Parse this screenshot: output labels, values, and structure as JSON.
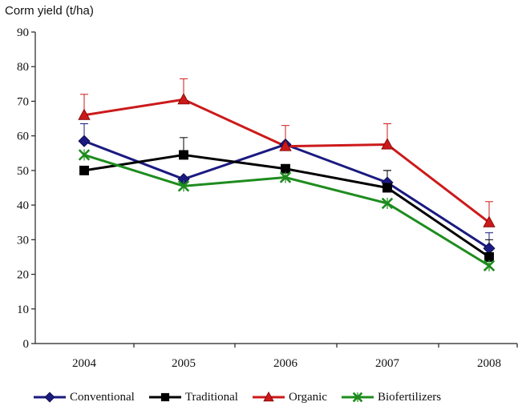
{
  "chart_data": {
    "type": "line",
    "title": "",
    "xlabel": "",
    "ylabel": "Corm yield (t/ha)",
    "categories": [
      "2004",
      "2005",
      "2006",
      "2007",
      "2008"
    ],
    "ylim": [
      0,
      90
    ],
    "yticks": [
      0,
      10,
      20,
      30,
      40,
      50,
      60,
      70,
      80,
      90
    ],
    "grid": false,
    "legend_position": "bottom",
    "series": [
      {
        "name": "Conventional",
        "color": "#1a1a80",
        "marker": "diamond",
        "values": [
          58.5,
          47.5,
          57.5,
          46.5,
          27.5
        ],
        "error": [
          5.0,
          0,
          0,
          3.5,
          4.5
        ]
      },
      {
        "name": "Traditional",
        "color": "#000000",
        "marker": "square",
        "values": [
          50.0,
          54.5,
          50.5,
          45.0,
          25.0
        ],
        "error": [
          0,
          5.0,
          0,
          5.0,
          5.0
        ]
      },
      {
        "name": "Organic",
        "color": "#cc1a1a",
        "marker": "triangle",
        "values": [
          66.0,
          70.5,
          57.0,
          57.5,
          35.0
        ],
        "error": [
          6.0,
          6.0,
          6.0,
          6.0,
          6.0
        ]
      },
      {
        "name": "Biofertilizers",
        "color": "#1e8c1e",
        "marker": "x",
        "values": [
          54.5,
          45.5,
          48.0,
          40.5,
          22.5
        ],
        "error": [
          0,
          0,
          0,
          0,
          0
        ]
      }
    ]
  }
}
